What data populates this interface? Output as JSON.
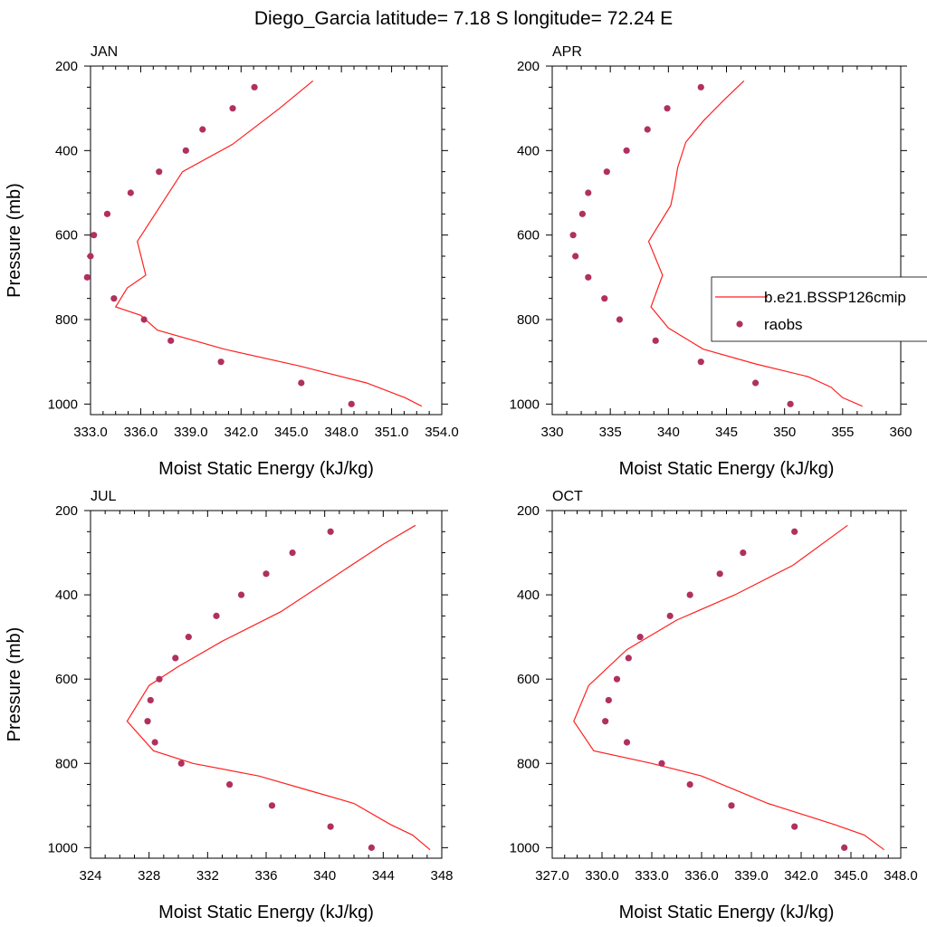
{
  "title": "Diego_Garcia  latitude= 7.18 S longitude= 72.24 E",
  "legend": {
    "model_label": "b.e21.BSSP126cmip",
    "obs_label": "raobs"
  },
  "colors": {
    "model_line": "#ff2020",
    "obs_marker": "#b03060",
    "frame": "#000000"
  },
  "chart_data": [
    {
      "type": "line",
      "panel": "JAN",
      "xlabel": "Moist Static Energy (kJ/kg)",
      "ylabel": "Pressure (mb)",
      "xlim": [
        333.0,
        354.0
      ],
      "xticks": [
        333,
        336,
        339,
        342,
        345,
        348,
        351,
        354
      ],
      "xtick_labels": [
        "333.0",
        "336.0",
        "339.0",
        "342.0",
        "345.0",
        "348.0",
        "351.0",
        "354.0"
      ],
      "ylim": [
        1025,
        200
      ],
      "yticks": [
        200,
        400,
        600,
        800,
        1000
      ],
      "yticks_labels": [
        "200",
        "400",
        "600",
        "800",
        "1000"
      ],
      "series": [
        {
          "name": "b.e21.BSSP126cmip",
          "kind": "line",
          "x": [
            346.3,
            344.3,
            341.5,
            338.5,
            335.8,
            336.3,
            335.2,
            334.5,
            336.0,
            337.0,
            341.0,
            345.5,
            349.5,
            351.8,
            352.8
          ],
          "y": [
            235,
            300,
            385,
            450,
            615,
            695,
            725,
            770,
            790,
            825,
            870,
            910,
            950,
            985,
            1005
          ]
        },
        {
          "name": "raobs",
          "kind": "scatter",
          "x": [
            342.8,
            341.5,
            339.7,
            338.7,
            337.1,
            335.4,
            334.0,
            333.2,
            333.0,
            332.8,
            334.4,
            336.2,
            337.8,
            340.8,
            345.6,
            348.6
          ],
          "y": [
            250,
            300,
            350,
            400,
            450,
            500,
            550,
            600,
            650,
            700,
            750,
            800,
            850,
            900,
            950,
            1000
          ]
        }
      ]
    },
    {
      "type": "line",
      "panel": "APR",
      "xlabel": "Moist Static Energy (kJ/kg)",
      "ylabel": "",
      "xlim": [
        330,
        360
      ],
      "xticks": [
        330,
        335,
        340,
        345,
        350,
        355,
        360
      ],
      "xtick_labels": [
        "330",
        "335",
        "340",
        "345",
        "350",
        "355",
        "360"
      ],
      "ylim": [
        1025,
        200
      ],
      "yticks": [
        200,
        400,
        600,
        800,
        1000
      ],
      "yticks_labels": [
        "200",
        "400",
        "600",
        "800",
        "1000"
      ],
      "series": [
        {
          "name": "b.e21.BSSP126cmip",
          "kind": "line",
          "x": [
            346.5,
            344.8,
            343.0,
            341.5,
            340.8,
            340.5,
            340.2,
            338.3,
            339.5,
            338.5,
            340.0,
            343.0,
            347.5,
            352.0,
            354.0,
            355.0,
            356.7
          ],
          "y": [
            235,
            280,
            330,
            380,
            440,
            490,
            530,
            615,
            695,
            770,
            820,
            870,
            905,
            935,
            960,
            985,
            1005
          ]
        },
        {
          "name": "raobs",
          "kind": "scatter",
          "x": [
            342.8,
            339.9,
            338.2,
            336.4,
            334.7,
            333.1,
            332.6,
            331.8,
            332.0,
            333.1,
            334.5,
            335.8,
            338.9,
            342.8,
            347.5,
            350.5
          ],
          "y": [
            250,
            300,
            350,
            400,
            450,
            500,
            550,
            600,
            650,
            700,
            750,
            800,
            850,
            900,
            950,
            1000
          ]
        }
      ]
    },
    {
      "type": "line",
      "panel": "JUL",
      "xlabel": "Moist Static Energy (kJ/kg)",
      "ylabel": "Pressure (mb)",
      "xlim": [
        324,
        348
      ],
      "xticks": [
        324,
        328,
        332,
        336,
        340,
        344,
        348
      ],
      "xtick_labels": [
        "324",
        "328",
        "332",
        "336",
        "340",
        "344",
        "348"
      ],
      "ylim": [
        1025,
        200
      ],
      "yticks": [
        200,
        400,
        600,
        800,
        1000
      ],
      "yticks_labels": [
        "200",
        "400",
        "600",
        "800",
        "1000"
      ],
      "series": [
        {
          "name": "b.e21.BSSP126cmip",
          "kind": "line",
          "x": [
            346.2,
            344.0,
            340.5,
            337.0,
            333.0,
            330.0,
            328.0,
            326.5,
            328.3,
            331.0,
            335.5,
            339.0,
            342.0,
            344.5,
            346.0,
            347.2
          ],
          "y": [
            235,
            280,
            360,
            440,
            510,
            570,
            615,
            700,
            770,
            800,
            830,
            865,
            895,
            945,
            970,
            1005
          ]
        },
        {
          "name": "raobs",
          "kind": "scatter",
          "x": [
            340.4,
            337.8,
            336.0,
            334.3,
            332.6,
            330.7,
            329.8,
            328.7,
            328.1,
            327.9,
            328.4,
            330.2,
            333.5,
            336.4,
            340.4,
            343.2
          ],
          "y": [
            250,
            300,
            350,
            400,
            450,
            500,
            550,
            600,
            650,
            700,
            750,
            800,
            850,
            900,
            950,
            1000
          ]
        }
      ]
    },
    {
      "type": "line",
      "panel": "OCT",
      "xlabel": "Moist Static Energy (kJ/kg)",
      "ylabel": "",
      "xlim": [
        327.0,
        348.0
      ],
      "xticks": [
        327,
        330,
        333,
        336,
        339,
        342,
        345,
        348
      ],
      "xtick_labels": [
        "327.0",
        "330.0",
        "333.0",
        "336.0",
        "339.0",
        "342.0",
        "345.0",
        "348.0"
      ],
      "ylim": [
        1025,
        200
      ],
      "yticks": [
        200,
        400,
        600,
        800,
        1000
      ],
      "yticks_labels": [
        "200",
        "400",
        "600",
        "800",
        "1000"
      ],
      "series": [
        {
          "name": "b.e21.BSSP126cmip",
          "kind": "line",
          "x": [
            344.8,
            341.5,
            338.0,
            334.5,
            331.5,
            329.2,
            328.3,
            329.5,
            333.0,
            336.0,
            340.0,
            344.0,
            345.8,
            347.0
          ],
          "y": [
            235,
            330,
            400,
            460,
            530,
            615,
            700,
            770,
            800,
            830,
            895,
            945,
            970,
            1005
          ]
        },
        {
          "name": "raobs",
          "kind": "scatter",
          "x": [
            341.6,
            338.5,
            337.1,
            335.3,
            334.1,
            332.3,
            331.6,
            330.9,
            330.4,
            330.2,
            331.5,
            333.6,
            335.3,
            337.8,
            341.6,
            344.6
          ],
          "y": [
            250,
            300,
            350,
            400,
            450,
            500,
            550,
            600,
            650,
            700,
            750,
            800,
            850,
            900,
            950,
            1000
          ]
        }
      ]
    }
  ]
}
